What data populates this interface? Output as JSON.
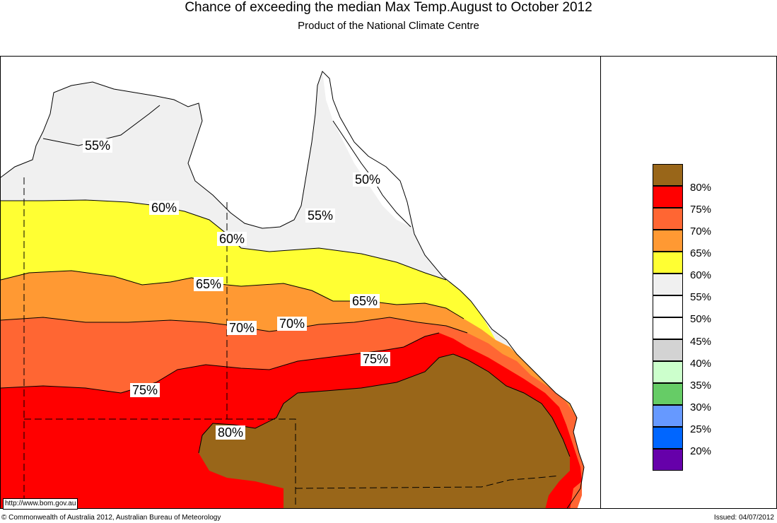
{
  "header": {
    "title": "Chance of exceeding the median Max Temp.August to October 2012",
    "subtitle": "Product of the National Climate Centre"
  },
  "map": {
    "region": "Queensland, Australia",
    "zones": [
      {
        "band": "55%",
        "color": "#f0f0f0"
      },
      {
        "band": "60%",
        "color": "#ffff33"
      },
      {
        "band": "65%",
        "color": "#ff9933"
      },
      {
        "band": "70%",
        "color": "#ff6633"
      },
      {
        "band": "75%",
        "color": "#ff0000"
      },
      {
        "band": "80%",
        "color": "#996619"
      }
    ],
    "contour_labels": [
      "55%",
      "50%",
      "60%",
      "55%",
      "60%",
      "65%",
      "65%",
      "70%",
      "70%",
      "75%",
      "75%",
      "80%"
    ]
  },
  "legend": {
    "items": [
      {
        "label": "80%",
        "color": "#996619"
      },
      {
        "label": "75%",
        "color": "#ff0000"
      },
      {
        "label": "70%",
        "color": "#ff6633"
      },
      {
        "label": "65%",
        "color": "#ff9933"
      },
      {
        "label": "60%",
        "color": "#ffff33"
      },
      {
        "label": "55%",
        "color": "#f0f0f0"
      },
      {
        "label": "50%",
        "color": "#ffffff"
      },
      {
        "label": "45%",
        "color": "#ffffff"
      },
      {
        "label": "40%",
        "color": "#d3d3d3"
      },
      {
        "label": "35%",
        "color": "#ccffcc"
      },
      {
        "label": "30%",
        "color": "#66cc66"
      },
      {
        "label": "25%",
        "color": "#6699ff"
      },
      {
        "label": "20%",
        "color": "#0066ff"
      },
      {
        "label": "",
        "color": "#6600aa"
      }
    ]
  },
  "footer": {
    "url": "http://www.bom.gov.au",
    "copyright": "© Commonwealth of Australia 2012, Australian Bureau of Meteorology",
    "issued": "Issued: 04/07/2012"
  }
}
